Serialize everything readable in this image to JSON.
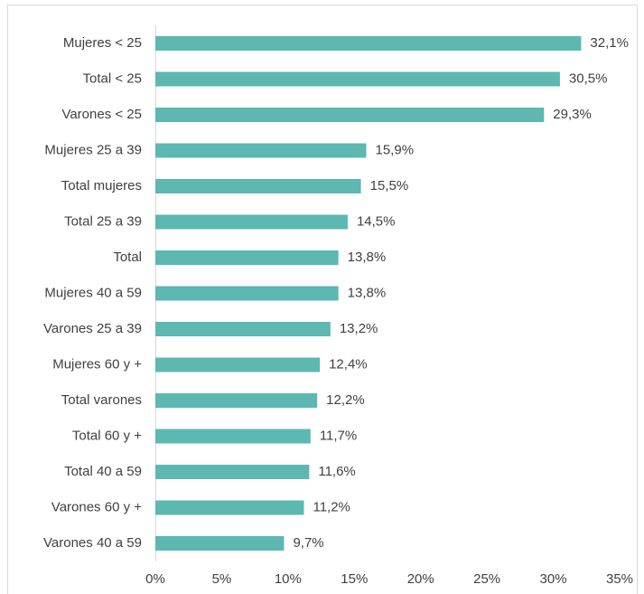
{
  "chart_data": {
    "type": "bar",
    "orientation": "horizontal",
    "categories": [
      "Mujeres < 25",
      "Total < 25",
      "Varones < 25",
      "Mujeres 25 a 39",
      "Total mujeres",
      "Total 25 a 39",
      "Total",
      "Mujeres 40 a 59",
      "Varones 25 a 39",
      "Mujeres 60 y +",
      "Total varones",
      "Total 60 y +",
      "Total 40 a 59",
      "Varones 60 y +",
      "Varones 40 a 59"
    ],
    "values": [
      32.1,
      30.5,
      29.3,
      15.9,
      15.5,
      14.5,
      13.8,
      13.8,
      13.2,
      12.4,
      12.2,
      11.7,
      11.6,
      11.2,
      9.7
    ],
    "value_labels": [
      "32,1%",
      "30,5%",
      "29,3%",
      "15,9%",
      "15,5%",
      "14,5%",
      "13,8%",
      "13,8%",
      "13,2%",
      "12,4%",
      "12,2%",
      "11,7%",
      "11,6%",
      "11,2%",
      "9,7%"
    ],
    "color": "#5cb8b1",
    "xlim": [
      0,
      35
    ],
    "xticks": [
      {
        "value": 0,
        "label": "0%"
      },
      {
        "value": 5,
        "label": "5%"
      },
      {
        "value": 10,
        "label": "10%"
      },
      {
        "value": 15,
        "label": "15%"
      },
      {
        "value": 20,
        "label": "20%"
      },
      {
        "value": 25,
        "label": "25%"
      },
      {
        "value": 30,
        "label": "30%"
      },
      {
        "value": 35,
        "label": "35%"
      }
    ],
    "grid": false
  }
}
